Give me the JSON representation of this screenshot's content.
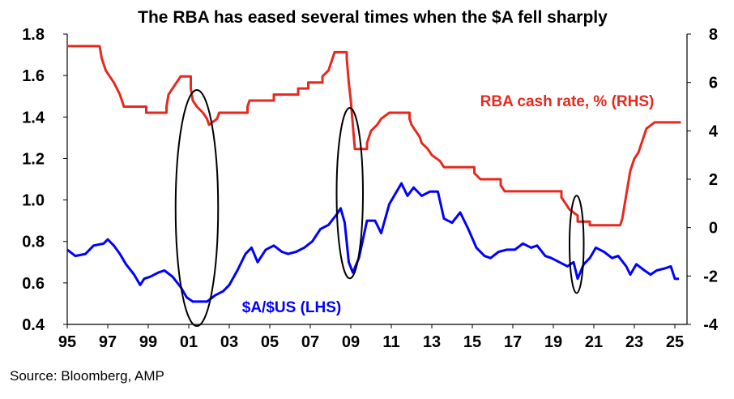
{
  "chart_data": {
    "type": "line",
    "title": "The RBA has eased several times when the $A fell sharply",
    "source": "Source: Bloomberg, AMP",
    "x_range": [
      1995,
      2025.6
    ],
    "x_ticks": [
      {
        "value": 1995,
        "label": "95"
      },
      {
        "value": 1997,
        "label": "97"
      },
      {
        "value": 1999,
        "label": "99"
      },
      {
        "value": 2001,
        "label": "01"
      },
      {
        "value": 2003,
        "label": "03"
      },
      {
        "value": 2005,
        "label": "05"
      },
      {
        "value": 2007,
        "label": "07"
      },
      {
        "value": 2009,
        "label": "09"
      },
      {
        "value": 2011,
        "label": "11"
      },
      {
        "value": 2013,
        "label": "13"
      },
      {
        "value": 2015,
        "label": "15"
      },
      {
        "value": 2017,
        "label": "17"
      },
      {
        "value": 2019,
        "label": "19"
      },
      {
        "value": 2021,
        "label": "21"
      },
      {
        "value": 2023,
        "label": "23"
      },
      {
        "value": 2025,
        "label": "25"
      }
    ],
    "y_left": {
      "range": [
        0.4,
        1.8
      ],
      "ticks": [
        "0.4",
        "0.6",
        "0.8",
        "1.0",
        "1.2",
        "1.4",
        "1.6",
        "1.8"
      ]
    },
    "y_right": {
      "range": [
        -4,
        8
      ],
      "ticks": [
        "-4",
        "-2",
        "0",
        "2",
        "4",
        "6",
        "8"
      ]
    },
    "grid": false,
    "series": [
      {
        "name": "$A/$US (LHS)",
        "axis": "left",
        "color": "#0000ff",
        "label_color": "#0000ff",
        "points": [
          [
            1995.0,
            0.76
          ],
          [
            1995.4,
            0.73
          ],
          [
            1995.9,
            0.74
          ],
          [
            1996.3,
            0.78
          ],
          [
            1996.8,
            0.79
          ],
          [
            1997.0,
            0.81
          ],
          [
            1997.3,
            0.78
          ],
          [
            1997.6,
            0.74
          ],
          [
            1997.9,
            0.69
          ],
          [
            1998.3,
            0.64
          ],
          [
            1998.6,
            0.59
          ],
          [
            1998.8,
            0.62
          ],
          [
            1999.1,
            0.63
          ],
          [
            1999.5,
            0.65
          ],
          [
            1999.8,
            0.66
          ],
          [
            2000.2,
            0.63
          ],
          [
            2000.6,
            0.58
          ],
          [
            2000.9,
            0.53
          ],
          [
            2001.2,
            0.51
          ],
          [
            2001.6,
            0.51
          ],
          [
            2001.9,
            0.51
          ],
          [
            2002.3,
            0.54
          ],
          [
            2002.7,
            0.56
          ],
          [
            2003.0,
            0.59
          ],
          [
            2003.4,
            0.66
          ],
          [
            2003.8,
            0.74
          ],
          [
            2004.1,
            0.77
          ],
          [
            2004.4,
            0.7
          ],
          [
            2004.8,
            0.76
          ],
          [
            2005.2,
            0.78
          ],
          [
            2005.6,
            0.75
          ],
          [
            2005.9,
            0.74
          ],
          [
            2006.3,
            0.75
          ],
          [
            2006.7,
            0.77
          ],
          [
            2007.1,
            0.8
          ],
          [
            2007.5,
            0.86
          ],
          [
            2007.9,
            0.88
          ],
          [
            2008.3,
            0.93
          ],
          [
            2008.5,
            0.96
          ],
          [
            2008.7,
            0.89
          ],
          [
            2008.9,
            0.7
          ],
          [
            2009.1,
            0.65
          ],
          [
            2009.4,
            0.72
          ],
          [
            2009.8,
            0.9
          ],
          [
            2010.2,
            0.9
          ],
          [
            2010.5,
            0.84
          ],
          [
            2010.9,
            0.98
          ],
          [
            2011.2,
            1.03
          ],
          [
            2011.5,
            1.08
          ],
          [
            2011.8,
            1.02
          ],
          [
            2012.1,
            1.06
          ],
          [
            2012.5,
            1.02
          ],
          [
            2012.9,
            1.04
          ],
          [
            2013.3,
            1.04
          ],
          [
            2013.6,
            0.91
          ],
          [
            2014.0,
            0.89
          ],
          [
            2014.4,
            0.94
          ],
          [
            2014.8,
            0.86
          ],
          [
            2015.2,
            0.77
          ],
          [
            2015.6,
            0.73
          ],
          [
            2015.9,
            0.72
          ],
          [
            2016.3,
            0.75
          ],
          [
            2016.7,
            0.76
          ],
          [
            2017.1,
            0.76
          ],
          [
            2017.5,
            0.79
          ],
          [
            2017.9,
            0.77
          ],
          [
            2018.2,
            0.78
          ],
          [
            2018.6,
            0.73
          ],
          [
            2018.9,
            0.72
          ],
          [
            2019.3,
            0.7
          ],
          [
            2019.7,
            0.68
          ],
          [
            2020.0,
            0.7
          ],
          [
            2020.2,
            0.62
          ],
          [
            2020.5,
            0.69
          ],
          [
            2020.8,
            0.72
          ],
          [
            2021.1,
            0.77
          ],
          [
            2021.5,
            0.75
          ],
          [
            2021.9,
            0.72
          ],
          [
            2022.2,
            0.73
          ],
          [
            2022.6,
            0.68
          ],
          [
            2022.8,
            0.64
          ],
          [
            2023.1,
            0.69
          ],
          [
            2023.5,
            0.66
          ],
          [
            2023.8,
            0.64
          ],
          [
            2024.1,
            0.66
          ],
          [
            2024.5,
            0.67
          ],
          [
            2024.8,
            0.68
          ],
          [
            2025.0,
            0.62
          ],
          [
            2025.2,
            0.62
          ]
        ]
      },
      {
        "name": "RBA cash rate, % (RHS)",
        "axis": "right",
        "color": "#e8281e",
        "label_color": "#e8281e",
        "points": [
          [
            1995.0,
            7.5
          ],
          [
            1996.6,
            7.5
          ],
          [
            1996.7,
            7.0
          ],
          [
            1996.9,
            6.5
          ],
          [
            1997.3,
            6.0
          ],
          [
            1997.6,
            5.5
          ],
          [
            1997.8,
            5.0
          ],
          [
            1998.9,
            5.0
          ],
          [
            1998.9,
            4.75
          ],
          [
            1999.9,
            4.75
          ],
          [
            1999.9,
            5.0
          ],
          [
            2000.0,
            5.5
          ],
          [
            2000.2,
            5.75
          ],
          [
            2000.6,
            6.25
          ],
          [
            2001.1,
            6.25
          ],
          [
            2001.1,
            5.75
          ],
          [
            2001.2,
            5.25
          ],
          [
            2001.4,
            5.0
          ],
          [
            2001.7,
            4.75
          ],
          [
            2001.9,
            4.5
          ],
          [
            2002.0,
            4.25
          ],
          [
            2002.4,
            4.5
          ],
          [
            2002.5,
            4.75
          ],
          [
            2003.9,
            4.75
          ],
          [
            2003.9,
            5.0
          ],
          [
            2004.0,
            5.25
          ],
          [
            2005.2,
            5.25
          ],
          [
            2005.2,
            5.5
          ],
          [
            2006.4,
            5.5
          ],
          [
            2006.4,
            5.75
          ],
          [
            2006.9,
            5.75
          ],
          [
            2006.9,
            6.0
          ],
          [
            2007.6,
            6.0
          ],
          [
            2007.6,
            6.25
          ],
          [
            2007.9,
            6.5
          ],
          [
            2008.0,
            6.75
          ],
          [
            2008.2,
            7.25
          ],
          [
            2008.8,
            7.25
          ],
          [
            2008.8,
            7.0
          ],
          [
            2008.9,
            6.0
          ],
          [
            2009.0,
            5.25
          ],
          [
            2009.1,
            4.25
          ],
          [
            2009.2,
            3.25
          ],
          [
            2009.8,
            3.25
          ],
          [
            2009.8,
            3.5
          ],
          [
            2009.9,
            3.75
          ],
          [
            2010.0,
            4.0
          ],
          [
            2010.3,
            4.25
          ],
          [
            2010.5,
            4.5
          ],
          [
            2010.9,
            4.75
          ],
          [
            2011.9,
            4.75
          ],
          [
            2011.9,
            4.5
          ],
          [
            2012.0,
            4.25
          ],
          [
            2012.4,
            3.75
          ],
          [
            2012.5,
            3.5
          ],
          [
            2012.8,
            3.25
          ],
          [
            2013.0,
            3.0
          ],
          [
            2013.4,
            2.75
          ],
          [
            2013.6,
            2.5
          ],
          [
            2015.1,
            2.5
          ],
          [
            2015.1,
            2.25
          ],
          [
            2015.4,
            2.0
          ],
          [
            2016.4,
            2.0
          ],
          [
            2016.4,
            1.75
          ],
          [
            2016.6,
            1.5
          ],
          [
            2019.4,
            1.5
          ],
          [
            2019.4,
            1.25
          ],
          [
            2019.6,
            1.0
          ],
          [
            2019.8,
            0.75
          ],
          [
            2020.2,
            0.5
          ],
          [
            2020.2,
            0.25
          ],
          [
            2020.8,
            0.25
          ],
          [
            2020.8,
            0.1
          ],
          [
            2022.3,
            0.1
          ],
          [
            2022.4,
            0.35
          ],
          [
            2022.5,
            0.85
          ],
          [
            2022.6,
            1.35
          ],
          [
            2022.7,
            1.85
          ],
          [
            2022.8,
            2.35
          ],
          [
            2022.9,
            2.6
          ],
          [
            2023.0,
            2.85
          ],
          [
            2023.2,
            3.1
          ],
          [
            2023.3,
            3.35
          ],
          [
            2023.4,
            3.6
          ],
          [
            2023.5,
            3.85
          ],
          [
            2023.6,
            4.1
          ],
          [
            2024.0,
            4.35
          ],
          [
            2025.0,
            4.35
          ],
          [
            2025.1,
            4.35
          ],
          [
            2025.3,
            4.35
          ]
        ]
      }
    ],
    "annotations": [
      {
        "type": "ellipse",
        "cx": 2001.4,
        "cy": 0.961,
        "rx": 1.05,
        "ry": 0.569
      },
      {
        "type": "ellipse",
        "cx": 2008.95,
        "cy": 1.033,
        "rx": 0.65,
        "ry": 0.411
      },
      {
        "type": "ellipse",
        "cx": 2020.15,
        "cy": 0.786,
        "rx": 0.35,
        "ry": 0.235
      }
    ]
  }
}
